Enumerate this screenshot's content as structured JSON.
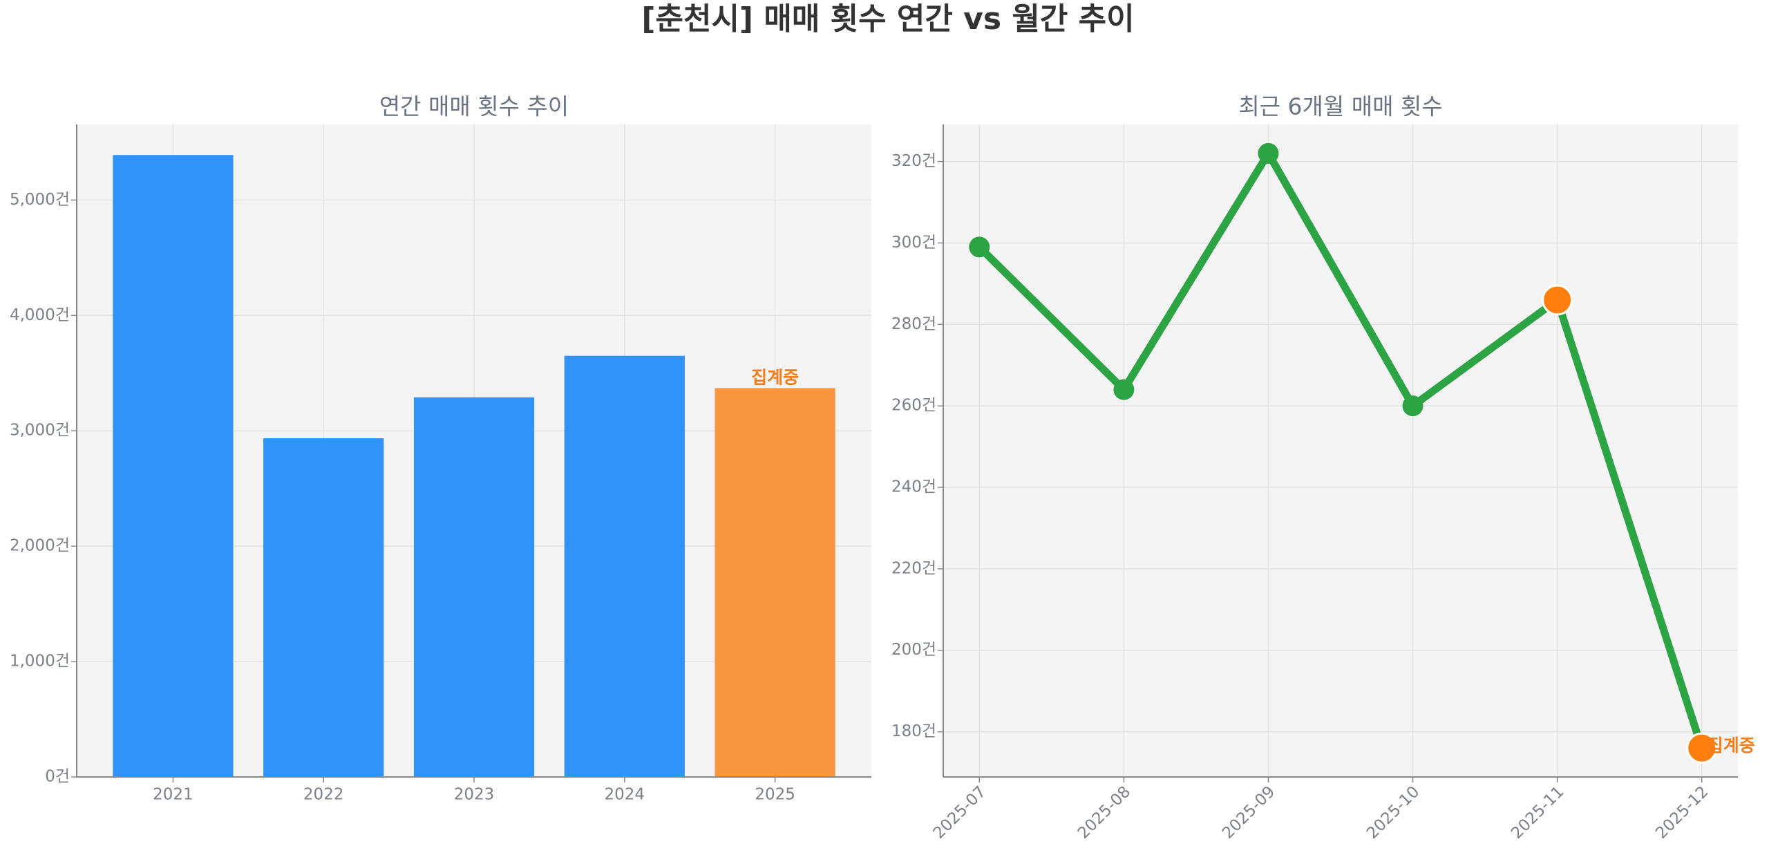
{
  "title": "[춘천시] 매매 횟수 연간 vs 월간 추이",
  "chart_data": [
    {
      "type": "bar",
      "title": "연간 매매 횟수 추이",
      "categories": [
        "2021",
        "2022",
        "2023",
        "2024",
        "2025"
      ],
      "values": [
        5390,
        2935,
        3290,
        3650,
        3370
      ],
      "colors": [
        "#3192f9",
        "#3192f9",
        "#3192f9",
        "#3192f9",
        "#f99740"
      ],
      "ylim": [
        0,
        5655
      ],
      "yticks": [
        {
          "value": 0,
          "label": "0건"
        },
        {
          "value": 1000,
          "label": "1,000건"
        },
        {
          "value": 2000,
          "label": "2,000건"
        },
        {
          "value": 3000,
          "label": "3,000건"
        },
        {
          "value": 4000,
          "label": "4,000건"
        },
        {
          "value": 5000,
          "label": "5,000건"
        }
      ],
      "grid": true,
      "annotations": [
        {
          "text": "집계중",
          "category": "2025",
          "color": "#f57c1a"
        }
      ]
    },
    {
      "type": "line",
      "title": "최근 6개월 매매 횟수",
      "categories": [
        "2025-07",
        "2025-08",
        "2025-09",
        "2025-10",
        "2025-11",
        "2025-12"
      ],
      "series": [
        {
          "color": "#2ca444",
          "values": [
            299,
            264,
            322,
            260,
            286,
            176
          ],
          "marker_colors": [
            "#2ca444",
            "#2ca444",
            "#2ca444",
            "#2ca444",
            "#ff7f0e",
            "#ff7f0e"
          ]
        }
      ],
      "ylim": [
        168.9,
        329.1
      ],
      "yticks": [
        {
          "value": 180,
          "label": "180건"
        },
        {
          "value": 200,
          "label": "200건"
        },
        {
          "value": 220,
          "label": "220건"
        },
        {
          "value": 240,
          "label": "240건"
        },
        {
          "value": 260,
          "label": "260건"
        },
        {
          "value": 280,
          "label": "280건"
        },
        {
          "value": 300,
          "label": "300건"
        },
        {
          "value": 320,
          "label": "320건"
        }
      ],
      "grid": true,
      "annotations": [
        {
          "text": "집계중",
          "category": "2025-12",
          "color": "#f57c1a"
        }
      ]
    }
  ]
}
